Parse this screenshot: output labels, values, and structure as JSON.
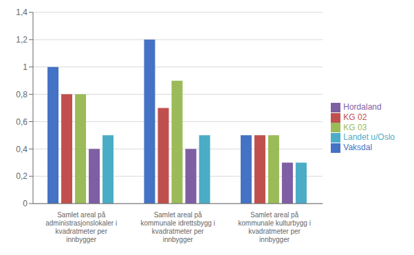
{
  "chart_data": {
    "type": "bar",
    "categories": [
      "Samlet areal på\nadministrasjonslokaler i\nkvadratmeter per\ninnbygger",
      "Samlet areal på\nkommunale idrettsbygg i\nkvadratmeter per\ninnbygger",
      "Samlet areal på\nkommunale kulturbygg i\nkvadratmeter per\ninnbygger"
    ],
    "series": [
      {
        "name": "Vaksdal",
        "color": "#4472c4",
        "values": [
          1.0,
          1.2,
          0.5
        ]
      },
      {
        "name": "KG 02",
        "color": "#c0504d",
        "values": [
          0.8,
          0.7,
          0.5
        ]
      },
      {
        "name": "KG 03",
        "color": "#9bbb59",
        "values": [
          0.8,
          0.9,
          0.5
        ]
      },
      {
        "name": "Hordaland",
        "color": "#7f5fa3",
        "values": [
          0.4,
          0.4,
          0.3
        ]
      },
      {
        "name": "Landet u/Oslo",
        "color": "#4bacc6",
        "values": [
          0.5,
          0.5,
          0.3
        ]
      }
    ],
    "ylim": [
      0,
      1.4
    ],
    "yticks": [
      0,
      {
        "value": 0.2,
        "label": "0,2"
      },
      {
        "value": 0.4,
        "label": "0,4"
      },
      {
        "value": 0.6,
        "label": "0,6"
      },
      {
        "value": 0.8,
        "label": "0,8"
      },
      1,
      {
        "value": 1.2,
        "label": "1,2"
      },
      {
        "value": 1.4,
        "label": "1,4"
      }
    ],
    "grid": true,
    "legend": "right"
  }
}
